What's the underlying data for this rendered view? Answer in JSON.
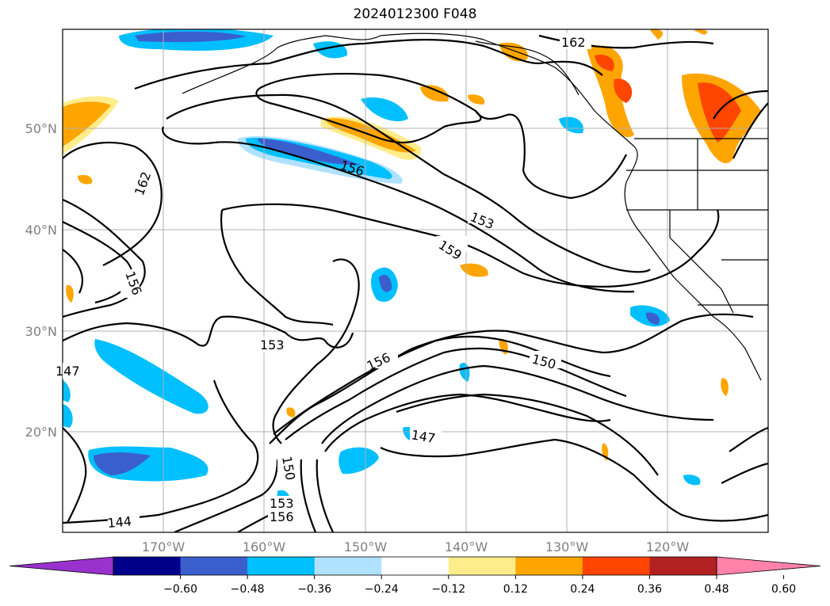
{
  "title": "2024012300 F048",
  "map": {
    "lat_labels": [
      "50°N",
      "40°N",
      "30°N",
      "20°N"
    ],
    "lon_labels": [
      "170°W",
      "160°W",
      "150°W",
      "140°W",
      "130°W",
      "120°W"
    ],
    "contour_labels": [
      "162",
      "162",
      "156",
      "153",
      "159",
      "156",
      "153",
      "156",
      "150",
      "147",
      "150",
      "153",
      "156",
      "144",
      "147"
    ]
  },
  "colorbar": {
    "ticks": [
      "−0.60",
      "−0.48",
      "−0.36",
      "−0.24",
      "−0.12",
      "0.12",
      "0.24",
      "0.36",
      "0.48",
      "0.60"
    ],
    "colors": [
      "#9932cc",
      "#00008b",
      "#3a5fcd",
      "#00bfff",
      "#b0e2ff",
      "#ffffff",
      "#ffec8b",
      "#ffa500",
      "#ff4500",
      "#b22222",
      "#ff82ab"
    ]
  }
}
